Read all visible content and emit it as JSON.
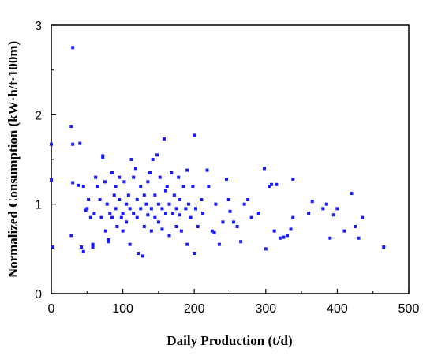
{
  "chart_data": {
    "type": "scatter",
    "title": "",
    "xlabel": "Daily Production (t/d)",
    "ylabel": "Normalized Consumption (kW·h/t·100m)",
    "xlim": [
      0,
      500
    ],
    "ylim": [
      0,
      3
    ],
    "xticks": [
      "0",
      "100",
      "200",
      "300",
      "400",
      "500"
    ],
    "yticks": [
      "0",
      "1",
      "2",
      "3"
    ],
    "grid": false,
    "legend": "none",
    "marker_color": "#1a1aff",
    "marker": "square",
    "series": [
      {
        "points": [
          [
            0,
            1.67
          ],
          [
            0,
            1.27
          ],
          [
            2,
            0.52
          ],
          [
            28,
            1.87
          ],
          [
            30,
            2.75
          ],
          [
            30,
            1.67
          ],
          [
            30,
            1.24
          ],
          [
            28,
            0.65
          ],
          [
            40,
            1.68
          ],
          [
            38,
            1.21
          ],
          [
            45,
            1.2
          ],
          [
            42,
            0.52
          ],
          [
            45,
            0.47
          ],
          [
            48,
            0.93
          ],
          [
            50,
            0.95
          ],
          [
            52,
            1.05
          ],
          [
            55,
            0.85
          ],
          [
            58,
            0.52
          ],
          [
            58,
            0.55
          ],
          [
            60,
            0.9
          ],
          [
            62,
            1.3
          ],
          [
            65,
            1.2
          ],
          [
            68,
            1.05
          ],
          [
            70,
            0.85
          ],
          [
            72,
            1.52
          ],
          [
            72,
            1.54
          ],
          [
            75,
            1.25
          ],
          [
            76,
            0.7
          ],
          [
            78,
            1.0
          ],
          [
            80,
            0.6
          ],
          [
            80,
            0.58
          ],
          [
            82,
            0.9
          ],
          [
            85,
            1.35
          ],
          [
            85,
            0.85
          ],
          [
            88,
            1.1
          ],
          [
            90,
            1.2
          ],
          [
            90,
            0.95
          ],
          [
            92,
            0.75
          ],
          [
            95,
            1.3
          ],
          [
            95,
            1.05
          ],
          [
            98,
            0.85
          ],
          [
            100,
            0.7
          ],
          [
            100,
            0.9
          ],
          [
            102,
            1.25
          ],
          [
            105,
            1.0
          ],
          [
            105,
            0.8
          ],
          [
            108,
            1.1
          ],
          [
            110,
            0.95
          ],
          [
            110,
            0.55
          ],
          [
            112,
            1.5
          ],
          [
            115,
            1.3
          ],
          [
            115,
            0.9
          ],
          [
            118,
            1.4
          ],
          [
            120,
            1.05
          ],
          [
            120,
            0.85
          ],
          [
            122,
            0.45
          ],
          [
            125,
            1.2
          ],
          [
            125,
            0.95
          ],
          [
            128,
            0.42
          ],
          [
            130,
            1.1
          ],
          [
            130,
            0.75
          ],
          [
            133,
            1.0
          ],
          [
            135,
            1.25
          ],
          [
            135,
            0.88
          ],
          [
            138,
            1.35
          ],
          [
            140,
            0.95
          ],
          [
            140,
            0.7
          ],
          [
            142,
            1.5
          ],
          [
            145,
            1.1
          ],
          [
            145,
            0.85
          ],
          [
            148,
            1.55
          ],
          [
            150,
            1.0
          ],
          [
            150,
            0.8
          ],
          [
            152,
            1.3
          ],
          [
            155,
            0.95
          ],
          [
            155,
            0.72
          ],
          [
            158,
            1.73
          ],
          [
            160,
            1.15
          ],
          [
            160,
            0.9
          ],
          [
            162,
            1.2
          ],
          [
            165,
            1.0
          ],
          [
            165,
            0.65
          ],
          [
            168,
            1.35
          ],
          [
            170,
            0.9
          ],
          [
            172,
            1.1
          ],
          [
            175,
            0.95
          ],
          [
            175,
            0.75
          ],
          [
            178,
            1.3
          ],
          [
            180,
            0.88
          ],
          [
            180,
            1.05
          ],
          [
            182,
            0.7
          ],
          [
            185,
            1.2
          ],
          [
            188,
            0.95
          ],
          [
            190,
            1.38
          ],
          [
            190,
            0.55
          ],
          [
            192,
            1.0
          ],
          [
            195,
            0.85
          ],
          [
            198,
            1.2
          ],
          [
            200,
            1.77
          ],
          [
            200,
            0.45
          ],
          [
            202,
            0.95
          ],
          [
            205,
            0.75
          ],
          [
            210,
            1.05
          ],
          [
            212,
            0.9
          ],
          [
            218,
            1.38
          ],
          [
            220,
            1.2
          ],
          [
            225,
            0.7
          ],
          [
            228,
            0.68
          ],
          [
            230,
            1.0
          ],
          [
            235,
            0.55
          ],
          [
            240,
            0.8
          ],
          [
            245,
            1.28
          ],
          [
            248,
            1.05
          ],
          [
            250,
            0.92
          ],
          [
            255,
            0.8
          ],
          [
            260,
            0.75
          ],
          [
            265,
            0.58
          ],
          [
            270,
            1.0
          ],
          [
            275,
            1.05
          ],
          [
            280,
            0.85
          ],
          [
            290,
            0.9
          ],
          [
            298,
            1.4
          ],
          [
            300,
            0.5
          ],
          [
            305,
            1.2
          ],
          [
            308,
            1.22
          ],
          [
            312,
            0.7
          ],
          [
            315,
            1.22
          ],
          [
            320,
            0.62
          ],
          [
            325,
            0.63
          ],
          [
            330,
            0.65
          ],
          [
            335,
            0.72
          ],
          [
            338,
            1.28
          ],
          [
            338,
            0.85
          ],
          [
            360,
            0.9
          ],
          [
            365,
            1.03
          ],
          [
            380,
            0.95
          ],
          [
            385,
            1.0
          ],
          [
            390,
            0.62
          ],
          [
            395,
            0.88
          ],
          [
            400,
            0.95
          ],
          [
            410,
            0.7
          ],
          [
            420,
            1.12
          ],
          [
            425,
            0.75
          ],
          [
            430,
            0.62
          ],
          [
            435,
            0.85
          ],
          [
            465,
            0.52
          ]
        ]
      }
    ]
  }
}
